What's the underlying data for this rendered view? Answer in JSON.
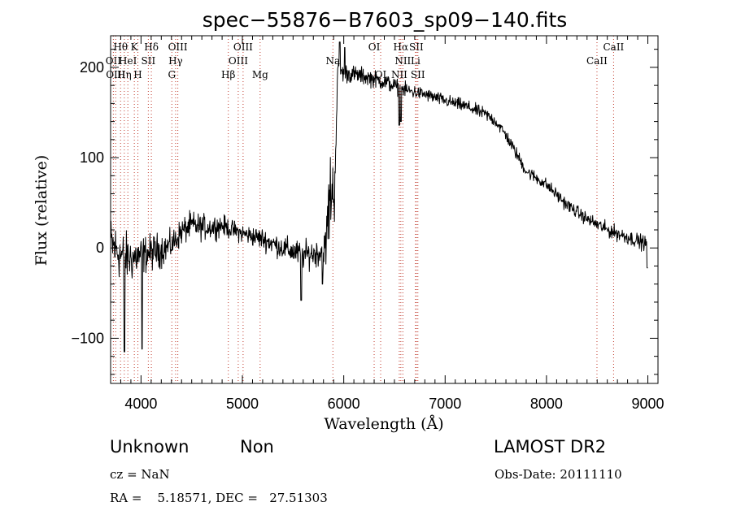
{
  "chart_data": {
    "type": "line",
    "title": "spec−55876−B7603_sp09−140.fits",
    "xlabel": "Wavelength (Å)",
    "ylabel": "Flux (relative)",
    "xlim": [
      3700,
      9100
    ],
    "ylim": [
      -150,
      235
    ],
    "x_ticks": [
      {
        "value": 4000,
        "label": "4000"
      },
      {
        "value": 5000,
        "label": "5000"
      },
      {
        "value": 6000,
        "label": "6000"
      },
      {
        "value": 7000,
        "label": "7000"
      },
      {
        "value": 8000,
        "label": "8000"
      },
      {
        "value": 9000,
        "label": "9000"
      }
    ],
    "y_ticks": [
      {
        "value": -100,
        "label": "−100"
      },
      {
        "value": 0,
        "label": "0"
      },
      {
        "value": 100,
        "label": "100"
      },
      {
        "value": 200,
        "label": "200"
      }
    ],
    "grid": false,
    "line_color": "#000000",
    "marker_color": "#c0392b",
    "line_markers": [
      {
        "wavelength": 3727,
        "label": "OII",
        "row": 1
      },
      {
        "wavelength": 3750,
        "label": "OIII",
        "row": 2
      },
      {
        "wavelength": 3798,
        "label": "Hθ",
        "row": 0
      },
      {
        "wavelength": 3835,
        "label": "Hη",
        "row": 2
      },
      {
        "wavelength": 3870,
        "label": "HeI",
        "row": 1
      },
      {
        "wavelength": 3934,
        "label": "K",
        "row": 0
      },
      {
        "wavelength": 3969,
        "label": "H",
        "row": 2
      },
      {
        "wavelength": 4072,
        "label": "SII",
        "row": 1
      },
      {
        "wavelength": 4102,
        "label": "Hδ",
        "row": 0
      },
      {
        "wavelength": 4304,
        "label": "G",
        "row": 2
      },
      {
        "wavelength": 4341,
        "label": "Hγ",
        "row": 1
      },
      {
        "wavelength": 4363,
        "label": "OIII",
        "row": 0
      },
      {
        "wavelength": 4861,
        "label": "Hβ",
        "row": 2
      },
      {
        "wavelength": 4959,
        "label": "OIII",
        "row": 1
      },
      {
        "wavelength": 5007,
        "label": "OIII",
        "row": 0
      },
      {
        "wavelength": 5175,
        "label": "Mg",
        "row": 2
      },
      {
        "wavelength": 5893,
        "label": "Na",
        "row": 1
      },
      {
        "wavelength": 6300,
        "label": "OI",
        "row": 0
      },
      {
        "wavelength": 6364,
        "label": "OI",
        "row": 2
      },
      {
        "wavelength": 6548,
        "label": "NII",
        "row": 2
      },
      {
        "wavelength": 6563,
        "label": "Hα",
        "row": 0
      },
      {
        "wavelength": 6583,
        "label": "NII",
        "row": 1
      },
      {
        "wavelength": 6708,
        "label": "Li",
        "row": 1
      },
      {
        "wavelength": 6716,
        "label": "SII",
        "row": 0
      },
      {
        "wavelength": 6731,
        "label": "SII",
        "row": 2
      },
      {
        "wavelength": 8498,
        "label": "CaII",
        "row": 1
      },
      {
        "wavelength": 8662,
        "label": "CaII",
        "row": 0
      }
    ],
    "anchors": [
      [
        3700,
        5,
        26
      ],
      [
        3800,
        -8,
        24
      ],
      [
        3900,
        -12,
        22
      ],
      [
        4000,
        -8,
        18
      ],
      [
        4100,
        -5,
        17
      ],
      [
        4200,
        -2,
        16
      ],
      [
        4300,
        3,
        13
      ],
      [
        4400,
        18,
        13
      ],
      [
        4500,
        25,
        13
      ],
      [
        4600,
        23,
        12
      ],
      [
        4700,
        23,
        11
      ],
      [
        4800,
        25,
        10
      ],
      [
        4900,
        20,
        9
      ],
      [
        5000,
        16,
        9
      ],
      [
        5200,
        10,
        10
      ],
      [
        5400,
        0,
        11
      ],
      [
        5600,
        -8,
        13
      ],
      [
        5750,
        -5,
        13
      ],
      [
        5820,
        -2,
        20
      ],
      [
        5850,
        40,
        45
      ],
      [
        5880,
        70,
        40
      ],
      [
        5905,
        50,
        30
      ],
      [
        5940,
        196,
        9
      ],
      [
        6000,
        194,
        9
      ],
      [
        6200,
        190,
        8
      ],
      [
        6400,
        184,
        8
      ],
      [
        6600,
        175,
        7
      ],
      [
        6800,
        170,
        6
      ],
      [
        7000,
        163,
        6
      ],
      [
        7200,
        157,
        6
      ],
      [
        7400,
        148,
        6
      ],
      [
        7500,
        140,
        6
      ],
      [
        7600,
        125,
        6
      ],
      [
        7700,
        105,
        6
      ],
      [
        7800,
        85,
        6
      ],
      [
        8000,
        70,
        6
      ],
      [
        8200,
        48,
        6
      ],
      [
        8400,
        32,
        6
      ],
      [
        8600,
        20,
        7
      ],
      [
        8800,
        12,
        7
      ],
      [
        9000,
        4,
        7
      ]
    ],
    "features": [
      {
        "wavelength": 6548,
        "value": 136
      },
      {
        "wavelength": 6565,
        "value": 140
      },
      {
        "wavelength": 5580,
        "value": -58
      },
      {
        "wavelength": 5790,
        "value": -40
      },
      {
        "wavelength": 8995,
        "value": -22
      },
      {
        "wavelength": 4010,
        "value": -112
      },
      {
        "wavelength": 3835,
        "value": -115
      },
      {
        "wavelength": 5960,
        "value": 228
      },
      {
        "wavelength": 6010,
        "value": 222
      }
    ]
  },
  "info": {
    "object_class": "Unknown",
    "subclass": "Non",
    "survey": "LAMOST DR2",
    "redshift": "cz = NaN",
    "obs_date": "Obs-Date: 20111110",
    "coords": "RA =    5.18571, DEC =   27.51303"
  }
}
